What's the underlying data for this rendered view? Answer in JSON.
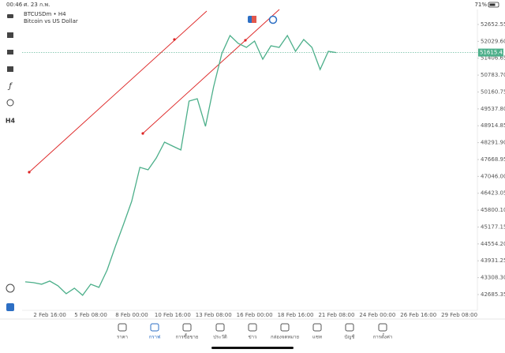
{
  "status_bar": {
    "time": "00:46",
    "date": "ศ. 23 ก.พ.",
    "battery": "71%"
  },
  "symbol": {
    "name": "BTCUSDm • H4",
    "description": "Bitcoin vs US Dollar"
  },
  "timeframe": "H4",
  "chart_data": {
    "type": "line",
    "color": "#4caf8a",
    "grid": false,
    "categories": [
      null,
      null,
      null,
      "2 Feb 16:00",
      null,
      null,
      null,
      null,
      "5 Feb 08:00",
      null,
      null,
      null,
      null,
      "8 Feb 00:00",
      null,
      null,
      null,
      null,
      "10 Feb 16:00",
      null,
      null,
      null,
      null,
      "13 Feb 08:00",
      null,
      null,
      null,
      null,
      "16 Feb 00:00",
      null,
      null,
      null,
      null,
      "18 Feb 16:00",
      null,
      null,
      null,
      null,
      "21 Feb 08:00",
      null,
      null,
      null,
      null,
      "24 Feb 00:00",
      null,
      null,
      null,
      null,
      "26 Feb 16:00",
      null,
      null,
      null,
      null,
      "29 Feb 08:00",
      null,
      null
    ],
    "values": [
      43153,
      43124,
      43066,
      43182,
      43007,
      42716,
      42920,
      42658,
      43066,
      42949,
      43590,
      44464,
      45281,
      46126,
      47379,
      47291,
      47728,
      48311,
      48165,
      48020,
      49826,
      49914,
      48894,
      50351,
      51575,
      52245,
      51954,
      51808,
      52041,
      51371,
      51866,
      51808,
      52245,
      51662,
      52099,
      51808,
      50992,
      51662,
      51615.42,
      null,
      null,
      null,
      null,
      null,
      null,
      null,
      null,
      null,
      null,
      null,
      null,
      null,
      null,
      null,
      null,
      null
    ],
    "current_price": 51615.42,
    "ylim": [
      42102,
      53206
    ],
    "yticks": [
      52652.55,
      {
        "value": 52029.6,
        "label": "52029.60"
      },
      51406.65,
      {
        "value": 50783.7,
        "label": "50783.70"
      },
      50160.75,
      {
        "value": 49537.8,
        "label": "49537.80"
      },
      48914.85,
      {
        "value": 48291.9,
        "label": "48291.90"
      },
      47668.95,
      {
        "value": 47046,
        "label": "47046.00"
      },
      46423.05,
      {
        "value": 45800.1,
        "label": "45800.10"
      },
      45177.15,
      {
        "value": 44554.2,
        "label": "44554.20"
      },
      43931.25,
      {
        "value": 43308.3,
        "label": "43308.30"
      },
      42685.35
    ]
  },
  "tabs": [
    "ราคา",
    "กราฟ",
    "การซื้อขาย",
    "ประวัติ",
    "ข่าว",
    "กล่องจดหมาย",
    "แชท",
    "บัญชี",
    "การตั้งค่า"
  ]
}
